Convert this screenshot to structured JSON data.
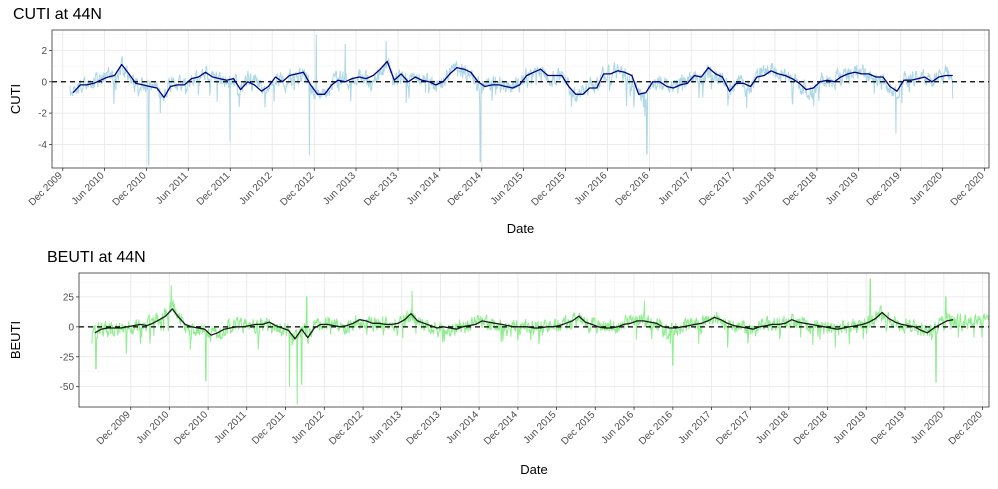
{
  "chart_data": [
    {
      "type": "line",
      "title": "CUTI at 44N",
      "xlabel": "Date",
      "ylabel": "CUTI",
      "ylim": [
        -5.5,
        3.3
      ],
      "yticks": [
        2,
        0,
        -2,
        -4
      ],
      "xlim": [
        "2009-10-15",
        "2020-12-20"
      ],
      "xticks": [
        "2009-12-01",
        "2010-06-01",
        "2010-12-01",
        "2011-06-01",
        "2011-12-01",
        "2012-06-01",
        "2012-12-01",
        "2013-06-01",
        "2013-12-01",
        "2014-06-01",
        "2014-12-01",
        "2015-06-01",
        "2015-12-01",
        "2016-06-01",
        "2016-12-01",
        "2017-06-01",
        "2017-12-01",
        "2018-06-01",
        "2018-12-01",
        "2019-06-01",
        "2019-12-01",
        "2020-06-01",
        "2020-12-01"
      ],
      "xtick_labels": [
        "Dec 2009",
        "Jun 2010",
        "Dec 2010",
        "Jun 2011",
        "Dec 2011",
        "Jun 2012",
        "Dec 2012",
        "Jun 2013",
        "Dec 2013",
        "Jun 2014",
        "Dec 2014",
        "Jun 2015",
        "Dec 2015",
        "Jun 2016",
        "Dec 2016",
        "Jun 2017",
        "Dec 2017",
        "Jun 2018",
        "Dec 2018",
        "Jun 2019",
        "Dec 2019",
        "Jun 2020",
        "Dec 2020"
      ],
      "grid": true,
      "reference_line": 0,
      "daily_color": "#add8e6",
      "monthly_color": "#000080",
      "daily_range": [
        "2010-01-01",
        "2020-12-31"
      ],
      "daily_approx": {
        "seasonal_amplitude": 0.45,
        "noise": 0.75,
        "low_spikes": [
          [
            "2010-12-10",
            -5.3
          ],
          [
            "2012-11-10",
            -4.7
          ],
          [
            "2014-11-25",
            -5.1
          ],
          [
            "2016-11-20",
            -4.6
          ],
          [
            "2011-11-30",
            -3.8
          ],
          [
            "2019-11-10",
            -3.3
          ]
        ],
        "high_spikes": [
          [
            "2012-12-10",
            3.0
          ],
          [
            "2013-04-15",
            2.4
          ],
          [
            "2013-10-10",
            2.6
          ]
        ]
      },
      "monthly_x": [
        "2010-01-15",
        "2010-02-15",
        "2010-03-15",
        "2010-04-15",
        "2010-05-15",
        "2010-06-15",
        "2010-07-15",
        "2010-08-15",
        "2010-09-15",
        "2010-10-15",
        "2010-11-15",
        "2010-12-15",
        "2011-01-15",
        "2011-02-15",
        "2011-03-15",
        "2011-04-15",
        "2011-05-15",
        "2011-06-15",
        "2011-07-15",
        "2011-08-15",
        "2011-09-15",
        "2011-10-15",
        "2011-11-15",
        "2011-12-15",
        "2012-01-15",
        "2012-02-15",
        "2012-03-15",
        "2012-04-15",
        "2012-05-15",
        "2012-06-15",
        "2012-07-15",
        "2012-08-15",
        "2012-09-15",
        "2012-10-15",
        "2012-11-15",
        "2012-12-15",
        "2013-01-15",
        "2013-02-15",
        "2013-03-15",
        "2013-04-15",
        "2013-05-15",
        "2013-06-15",
        "2013-07-15",
        "2013-08-15",
        "2013-09-15",
        "2013-10-15",
        "2013-11-15",
        "2013-12-15",
        "2014-01-15",
        "2014-02-15",
        "2014-03-15",
        "2014-04-15",
        "2014-05-15",
        "2014-06-15",
        "2014-07-15",
        "2014-08-15",
        "2014-09-15",
        "2014-10-15",
        "2014-11-15",
        "2014-12-15",
        "2015-01-15",
        "2015-02-15",
        "2015-03-15",
        "2015-04-15",
        "2015-05-15",
        "2015-06-15",
        "2015-07-15",
        "2015-08-15",
        "2015-09-15",
        "2015-10-15",
        "2015-11-15",
        "2015-12-15",
        "2016-01-15",
        "2016-02-15",
        "2016-03-15",
        "2016-04-15",
        "2016-05-15",
        "2016-06-15",
        "2016-07-15",
        "2016-08-15",
        "2016-09-15",
        "2016-10-15",
        "2016-11-15",
        "2016-12-15",
        "2017-01-15",
        "2017-02-15",
        "2017-03-15",
        "2017-04-15",
        "2017-05-15",
        "2017-06-15",
        "2017-07-15",
        "2017-08-15",
        "2017-09-15",
        "2017-10-15",
        "2017-11-15",
        "2017-12-15",
        "2018-01-15",
        "2018-02-15",
        "2018-03-15",
        "2018-04-15",
        "2018-05-15",
        "2018-06-15",
        "2018-07-15",
        "2018-08-15",
        "2018-09-15",
        "2018-10-15",
        "2018-11-15",
        "2018-12-15",
        "2019-01-15",
        "2019-02-15",
        "2019-03-15",
        "2019-04-15",
        "2019-05-15",
        "2019-06-15",
        "2019-07-15",
        "2019-08-15",
        "2019-09-15",
        "2019-10-15",
        "2019-11-15",
        "2019-12-15",
        "2020-01-15",
        "2020-02-15",
        "2020-03-15",
        "2020-04-15",
        "2020-05-15",
        "2020-06-15",
        "2020-07-15",
        "2020-08-15",
        "2020-09-15",
        "2020-10-15",
        "2020-11-15",
        "2020-12-15"
      ],
      "monthly_values": [
        -0.7,
        -0.2,
        -0.2,
        -0.1,
        0.1,
        0.3,
        0.4,
        1.1,
        0.5,
        -0.1,
        -0.2,
        -0.3,
        -0.4,
        -1.0,
        -0.3,
        -0.2,
        -0.2,
        0.2,
        0.3,
        0.6,
        0.3,
        0.2,
        0.1,
        0.2,
        -0.5,
        0.0,
        -0.2,
        -0.6,
        -0.3,
        0.3,
        0.0,
        0.4,
        0.5,
        0.6,
        -0.2,
        -0.8,
        -0.8,
        -0.2,
        0.1,
        0.0,
        0.2,
        0.3,
        0.2,
        0.4,
        0.8,
        1.3,
        0.1,
        0.5,
        0.0,
        0.3,
        0.1,
        0.0,
        -0.2,
        0.0,
        0.5,
        0.9,
        0.8,
        0.6,
        0.0,
        -0.3,
        -0.2,
        -0.2,
        -0.3,
        -0.4,
        -0.2,
        0.4,
        0.6,
        0.8,
        0.4,
        0.4,
        0.4,
        -0.3,
        -0.8,
        -0.8,
        -0.4,
        -0.4,
        0.5,
        0.5,
        0.7,
        0.6,
        0.4,
        -0.8,
        -0.7,
        0.0,
        0.0,
        -0.3,
        -0.4,
        -0.2,
        -0.1,
        0.4,
        0.3,
        0.9,
        0.5,
        0.3,
        -0.6,
        -0.1,
        -0.1,
        -0.3,
        0.3,
        0.4,
        0.7,
        0.5,
        0.4,
        0.2,
        -0.1,
        -0.5,
        -0.4,
        0.0,
        0.1,
        0.0,
        0.3,
        0.5,
        0.6,
        0.5,
        0.5,
        0.3,
        0.3,
        -0.3,
        -0.6,
        0.1,
        0.1,
        0.2,
        0.3,
        0.0,
        0.3,
        0.4,
        0.4
      ]
    },
    {
      "type": "line",
      "title": "BEUTI at 44N",
      "xlabel": "Date",
      "ylabel": "BEUTI",
      "ylim": [
        -67,
        45
      ],
      "yticks": [
        25,
        0,
        -25,
        -50
      ],
      "xlim": [
        "2009-04-01",
        "2020-12-31"
      ],
      "xticks": [
        "2009-12-01",
        "2010-06-01",
        "2010-12-01",
        "2011-06-01",
        "2011-12-01",
        "2012-06-01",
        "2012-12-01",
        "2013-06-01",
        "2013-12-01",
        "2014-06-01",
        "2014-12-01",
        "2015-06-01",
        "2015-12-01",
        "2016-06-01",
        "2016-12-01",
        "2017-06-01",
        "2017-12-01",
        "2018-06-01",
        "2018-12-01",
        "2019-06-01",
        "2019-12-01",
        "2020-06-01",
        "2020-12-01"
      ],
      "xtick_labels": [
        "Dec 2009",
        "Jun 2010",
        "Dec 2010",
        "Jun 2011",
        "Dec 2011",
        "Jun 2012",
        "Dec 2012",
        "Jun 2013",
        "Dec 2013",
        "Jun 2014",
        "Dec 2014",
        "Jun 2015",
        "Dec 2015",
        "Jun 2016",
        "Dec 2016",
        "Jun 2017",
        "Dec 2017",
        "Jun 2018",
        "Dec 2018",
        "Jun 2019",
        "Dec 2019",
        "Jun 2020",
        "Dec 2020"
      ],
      "grid": true,
      "reference_line": 0,
      "daily_color": "#90ee90",
      "monthly_color": "#1a1a1a",
      "daily_range": [
        "2009-06-01",
        "2020-12-31"
      ],
      "daily_approx": {
        "seasonal_amplitude": 4,
        "noise": 9,
        "low_spikes": [
          [
            "2009-06-20",
            -35
          ],
          [
            "2010-11-20",
            -45
          ],
          [
            "2011-12-20",
            -50
          ],
          [
            "2012-01-25",
            -65
          ],
          [
            "2012-02-15",
            -48
          ],
          [
            "2016-11-30",
            -32
          ],
          [
            "2020-04-25",
            -46
          ]
        ],
        "high_spikes": [
          [
            "2010-06-10",
            35
          ],
          [
            "2012-03-10",
            25
          ],
          [
            "2013-07-20",
            30
          ],
          [
            "2019-06-20",
            40
          ],
          [
            "2020-06-10",
            25
          ],
          [
            "2016-07-20",
            22
          ]
        ]
      },
      "monthly_x": [
        "2009-06-15",
        "2009-07-15",
        "2009-08-15",
        "2009-09-15",
        "2009-10-15",
        "2009-11-15",
        "2009-12-15",
        "2010-01-15",
        "2010-02-15",
        "2010-03-15",
        "2010-04-15",
        "2010-05-15",
        "2010-06-15",
        "2010-07-15",
        "2010-08-15",
        "2010-09-15",
        "2010-10-15",
        "2010-11-15",
        "2010-12-15",
        "2011-01-15",
        "2011-02-15",
        "2011-03-15",
        "2011-04-15",
        "2011-05-15",
        "2011-06-15",
        "2011-07-15",
        "2011-08-15",
        "2011-09-15",
        "2011-10-15",
        "2011-11-15",
        "2011-12-15",
        "2012-01-15",
        "2012-02-15",
        "2012-03-15",
        "2012-04-15",
        "2012-05-15",
        "2012-06-15",
        "2012-07-15",
        "2012-08-15",
        "2012-09-15",
        "2012-10-15",
        "2012-11-15",
        "2012-12-15",
        "2013-01-15",
        "2013-02-15",
        "2013-03-15",
        "2013-04-15",
        "2013-05-15",
        "2013-06-15",
        "2013-07-15",
        "2013-08-15",
        "2013-09-15",
        "2013-10-15",
        "2013-11-15",
        "2013-12-15",
        "2014-01-15",
        "2014-02-15",
        "2014-03-15",
        "2014-04-15",
        "2014-05-15",
        "2014-06-15",
        "2014-07-15",
        "2014-08-15",
        "2014-09-15",
        "2014-10-15",
        "2014-11-15",
        "2014-12-15",
        "2015-01-15",
        "2015-02-15",
        "2015-03-15",
        "2015-04-15",
        "2015-05-15",
        "2015-06-15",
        "2015-07-15",
        "2015-08-15",
        "2015-09-15",
        "2015-10-15",
        "2015-11-15",
        "2015-12-15",
        "2016-01-15",
        "2016-02-15",
        "2016-03-15",
        "2016-04-15",
        "2016-05-15",
        "2016-06-15",
        "2016-07-15",
        "2016-08-15",
        "2016-09-15",
        "2016-10-15",
        "2016-11-15",
        "2016-12-15",
        "2017-01-15",
        "2017-02-15",
        "2017-03-15",
        "2017-04-15",
        "2017-05-15",
        "2017-06-15",
        "2017-07-15",
        "2017-08-15",
        "2017-09-15",
        "2017-10-15",
        "2017-11-15",
        "2017-12-15",
        "2018-01-15",
        "2018-02-15",
        "2018-03-15",
        "2018-04-15",
        "2018-05-15",
        "2018-06-15",
        "2018-07-15",
        "2018-08-15",
        "2018-09-15",
        "2018-10-15",
        "2018-11-15",
        "2018-12-15",
        "2019-01-15",
        "2019-02-15",
        "2019-03-15",
        "2019-04-15",
        "2019-05-15",
        "2019-06-15",
        "2019-07-15",
        "2019-08-15",
        "2019-09-15",
        "2019-10-15",
        "2019-11-15",
        "2019-12-15",
        "2020-01-15",
        "2020-02-15",
        "2020-03-15",
        "2020-04-15",
        "2020-05-15",
        "2020-06-15",
        "2020-07-15"
      ],
      "monthly_values": [
        -5,
        -2,
        -1,
        -1,
        -1,
        0,
        1,
        2,
        1,
        3,
        6,
        9,
        15,
        8,
        2,
        0,
        -1,
        -2,
        -7,
        -5,
        -2,
        -1,
        0,
        0,
        1,
        2,
        2,
        4,
        1,
        -1,
        -3,
        -10,
        -2,
        -9,
        -1,
        2,
        2,
        1,
        0,
        1,
        3,
        6,
        5,
        3,
        3,
        2,
        2,
        3,
        6,
        11,
        5,
        3,
        1,
        -1,
        0,
        -1,
        -2,
        0,
        1,
        2,
        5,
        4,
        3,
        2,
        1,
        0,
        0,
        0,
        -1,
        -1,
        0,
        0,
        1,
        3,
        5,
        9,
        4,
        2,
        0,
        -1,
        -1,
        0,
        2,
        3,
        5,
        5,
        4,
        3,
        0,
        -1,
        -1,
        0,
        1,
        2,
        3,
        5,
        8,
        6,
        3,
        1,
        0,
        -1,
        -2,
        0,
        1,
        2,
        2,
        3,
        6,
        4,
        3,
        2,
        1,
        0,
        -1,
        -2,
        -1,
        0,
        1,
        2,
        4,
        7,
        12,
        7,
        4,
        2,
        1,
        0,
        -3,
        -5,
        -1,
        2,
        5,
        6
      ]
    }
  ]
}
